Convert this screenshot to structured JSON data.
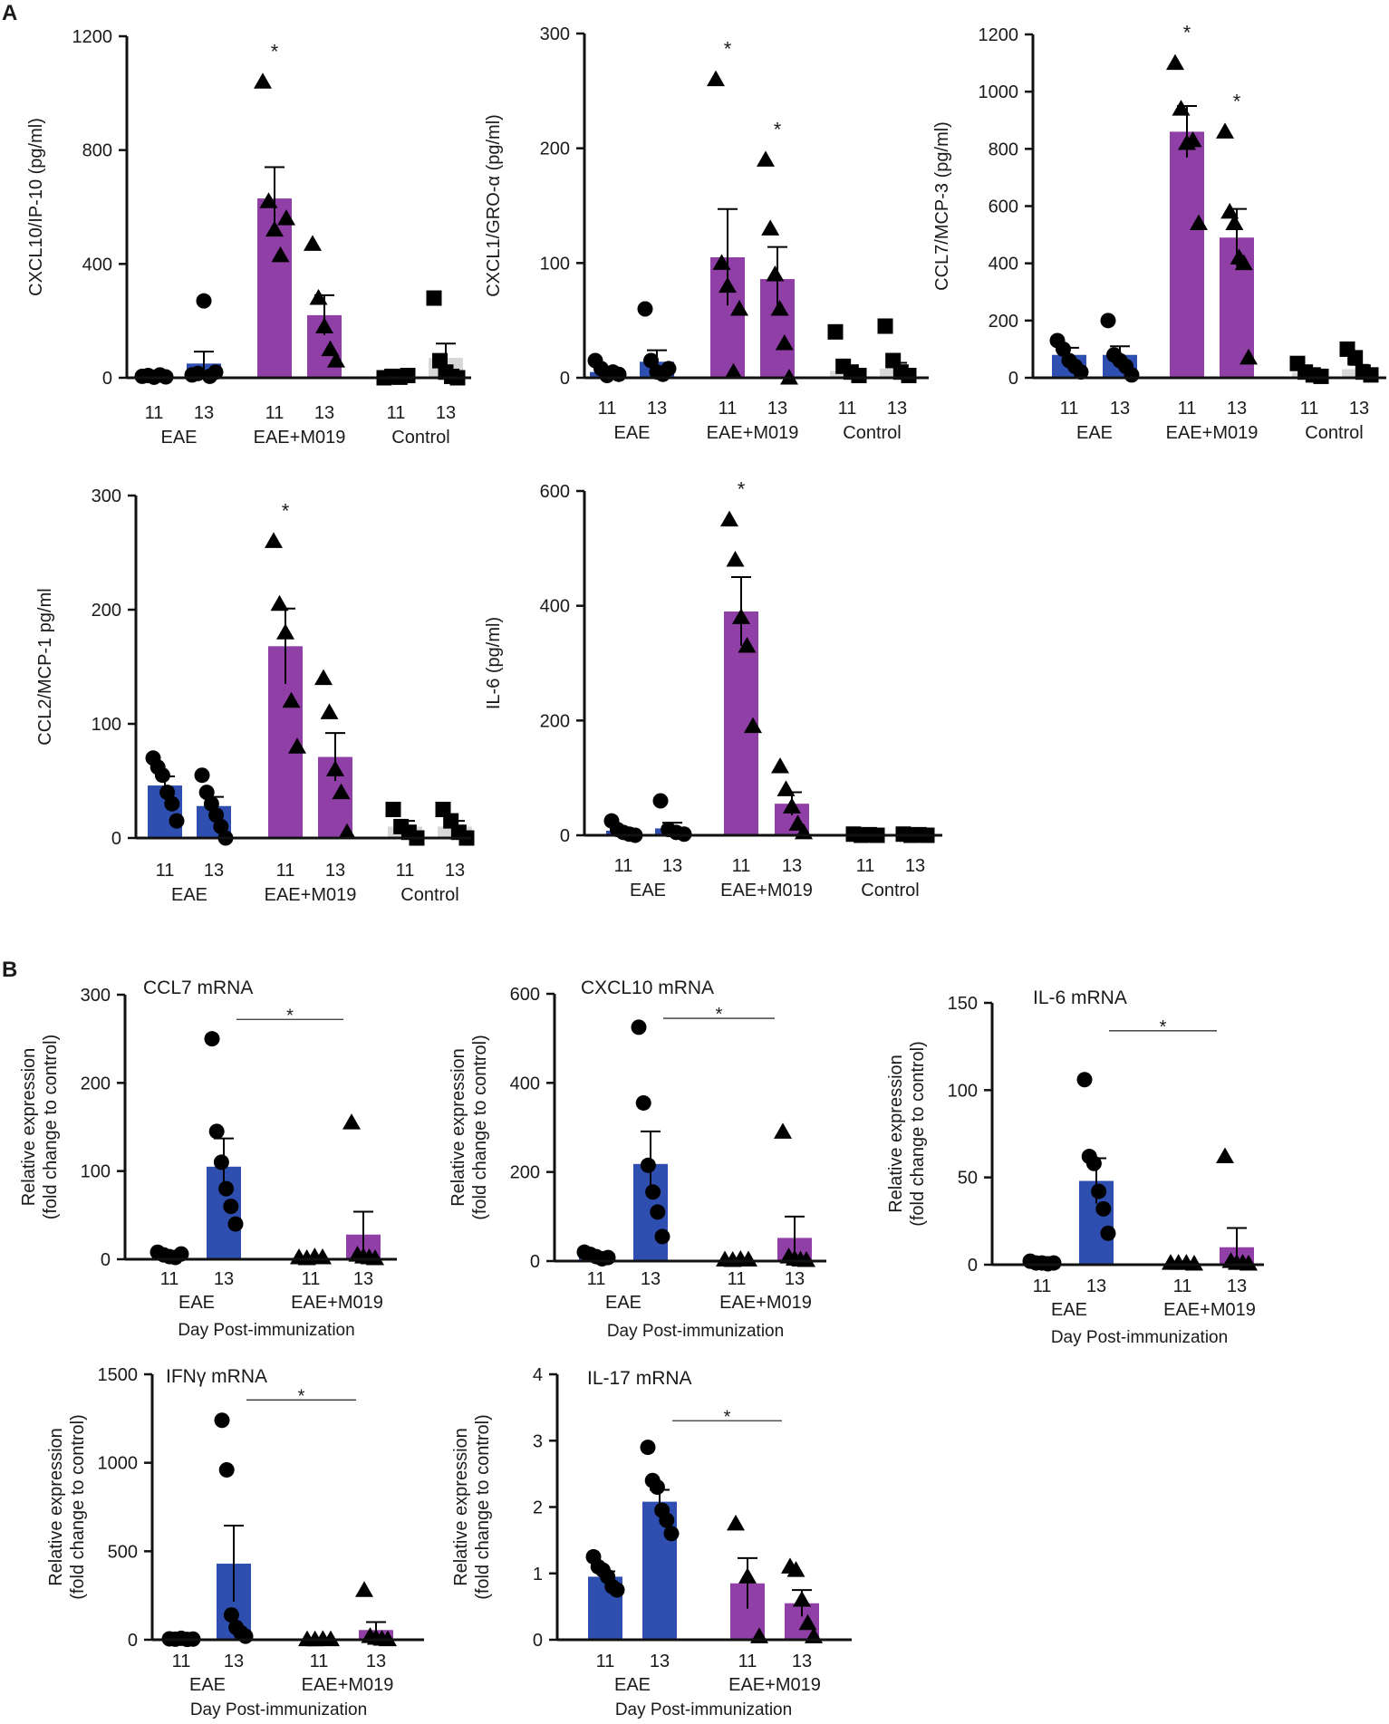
{
  "panels": [
    {
      "label": "A"
    },
    {
      "label": "B"
    }
  ],
  "colors": {
    "eae": "#2e4fb0",
    "m019": "#8f3fa6",
    "control": "#d8d8d8",
    "axis": "#111111"
  },
  "chart_data": [
    {
      "type": "bar",
      "panel": "A",
      "title": "",
      "ylabel": "CXCL10/IP-10  (pg/ml)",
      "xlabel": "",
      "ylim": [
        0,
        1200
      ],
      "yticks": [
        0,
        400,
        800,
        1200
      ],
      "day_labels": [
        "11",
        "13",
        "11",
        "13",
        "11",
        "13"
      ],
      "groups": [
        "EAE",
        "EAE+M019",
        "Control"
      ],
      "bars": [
        {
          "group": "EAE",
          "day": "11",
          "value": 5,
          "sem": 4,
          "points": [
            5,
            8,
            2,
            10,
            3
          ],
          "marker": "circle"
        },
        {
          "group": "EAE",
          "day": "13",
          "value": 50,
          "sem": 42,
          "points": [
            10,
            15,
            270,
            5,
            20
          ],
          "marker": "circle"
        },
        {
          "group": "EAE+M019",
          "day": "11",
          "value": 630,
          "sem": 110,
          "points": [
            1040,
            620,
            520,
            430,
            560
          ],
          "marker": "triangle"
        },
        {
          "group": "EAE+M019",
          "day": "13",
          "value": 220,
          "sem": 70,
          "points": [
            470,
            280,
            180,
            100,
            60
          ],
          "marker": "triangle"
        },
        {
          "group": "Control",
          "day": "11",
          "value": 5,
          "sem": 2,
          "points": [
            0,
            5,
            2,
            8
          ],
          "marker": "square"
        },
        {
          "group": "Control",
          "day": "13",
          "value": 70,
          "sem": 50,
          "points": [
            280,
            60,
            20,
            5,
            0
          ],
          "marker": "square"
        }
      ],
      "significance": [
        {
          "bar": 2,
          "label": "*"
        }
      ]
    },
    {
      "type": "bar",
      "panel": "A",
      "title": "",
      "ylabel": "CXCL1/GRO-α (pg/ml)",
      "xlabel": "",
      "ylim": [
        0,
        300
      ],
      "yticks": [
        0,
        100,
        200,
        300
      ],
      "day_labels": [
        "11",
        "13",
        "11",
        "13",
        "11",
        "13"
      ],
      "groups": [
        "EAE",
        "EAE+M019",
        "Control"
      ],
      "bars": [
        {
          "group": "EAE",
          "day": "11",
          "value": 5,
          "sem": 3,
          "points": [
            15,
            8,
            2,
            5,
            3
          ],
          "marker": "circle"
        },
        {
          "group": "EAE",
          "day": "13",
          "value": 14,
          "sem": 10,
          "points": [
            60,
            15,
            5,
            3,
            8
          ],
          "marker": "circle"
        },
        {
          "group": "EAE+M019",
          "day": "11",
          "value": 105,
          "sem": 42,
          "points": [
            260,
            100,
            80,
            5,
            60
          ],
          "marker": "triangle"
        },
        {
          "group": "EAE+M019",
          "day": "13",
          "value": 86,
          "sem": 28,
          "points": [
            190,
            130,
            90,
            60,
            30,
            0
          ],
          "marker": "triangle"
        },
        {
          "group": "Control",
          "day": "11",
          "value": 6,
          "sem": 3,
          "points": [
            40,
            10,
            5,
            2
          ],
          "marker": "square"
        },
        {
          "group": "Control",
          "day": "13",
          "value": 8,
          "sem": 5,
          "points": [
            45,
            15,
            5,
            2
          ],
          "marker": "square"
        }
      ],
      "significance": [
        {
          "bar": 2,
          "label": "*"
        },
        {
          "bar": 3,
          "label": "*"
        }
      ]
    },
    {
      "type": "bar",
      "panel": "A",
      "title": "",
      "ylabel": "CCL7/MCP-3 (pg/ml)",
      "xlabel": "",
      "ylim": [
        0,
        1200
      ],
      "yticks": [
        0,
        200,
        400,
        600,
        800,
        1000,
        1200
      ],
      "day_labels": [
        "11",
        "13",
        "11",
        "13",
        "11",
        "13"
      ],
      "groups": [
        "EAE",
        "EAE+M019",
        "Control"
      ],
      "bars": [
        {
          "group": "EAE",
          "day": "11",
          "value": 80,
          "sem": 25,
          "points": [
            130,
            100,
            60,
            40,
            20
          ],
          "marker": "circle"
        },
        {
          "group": "EAE",
          "day": "13",
          "value": 80,
          "sem": 30,
          "points": [
            200,
            80,
            60,
            40,
            10
          ],
          "marker": "circle"
        },
        {
          "group": "EAE+M019",
          "day": "11",
          "value": 860,
          "sem": 90,
          "points": [
            1100,
            940,
            820,
            830,
            540
          ],
          "marker": "triangle"
        },
        {
          "group": "EAE+M019",
          "day": "13",
          "value": 490,
          "sem": 100,
          "points": [
            860,
            580,
            540,
            420,
            400,
            70
          ],
          "marker": "triangle"
        },
        {
          "group": "Control",
          "day": "11",
          "value": 20,
          "sem": 8,
          "points": [
            50,
            20,
            10,
            5
          ],
          "marker": "square"
        },
        {
          "group": "Control",
          "day": "13",
          "value": 30,
          "sem": 15,
          "points": [
            100,
            70,
            20,
            10
          ],
          "marker": "square"
        }
      ],
      "significance": [
        {
          "bar": 2,
          "label": "*"
        },
        {
          "bar": 3,
          "label": "*"
        }
      ]
    },
    {
      "type": "bar",
      "panel": "A",
      "title": "",
      "ylabel": "CCL2/MCP-1  pg/ml",
      "xlabel": "",
      "ylim": [
        0,
        300
      ],
      "yticks": [
        0,
        100,
        200,
        300
      ],
      "day_labels": [
        "11",
        "13",
        "11",
        "13",
        "11",
        "13"
      ],
      "groups": [
        "EAE",
        "EAE+M019",
        "Control"
      ],
      "bars": [
        {
          "group": "EAE",
          "day": "11",
          "value": 46,
          "sem": 8,
          "points": [
            70,
            62,
            55,
            40,
            30,
            15
          ],
          "marker": "circle"
        },
        {
          "group": "EAE",
          "day": "13",
          "value": 28,
          "sem": 8,
          "points": [
            55,
            40,
            30,
            20,
            10,
            0
          ],
          "marker": "circle"
        },
        {
          "group": "EAE+M019",
          "day": "11",
          "value": 168,
          "sem": 33,
          "points": [
            260,
            205,
            180,
            120,
            80
          ],
          "marker": "triangle"
        },
        {
          "group": "EAE+M019",
          "day": "13",
          "value": 71,
          "sem": 21,
          "points": [
            140,
            110,
            60,
            40,
            5
          ],
          "marker": "triangle"
        },
        {
          "group": "Control",
          "day": "11",
          "value": 10,
          "sem": 5,
          "points": [
            25,
            10,
            5,
            0
          ],
          "marker": "square"
        },
        {
          "group": "Control",
          "day": "13",
          "value": 10,
          "sem": 5,
          "points": [
            25,
            15,
            5,
            0
          ],
          "marker": "square"
        }
      ],
      "significance": [
        {
          "bar": 2,
          "label": "*"
        }
      ]
    },
    {
      "type": "bar",
      "panel": "A",
      "title": "",
      "ylabel": "IL-6 (pg/ml)",
      "xlabel": "",
      "ylim": [
        0,
        600
      ],
      "yticks": [
        0,
        200,
        400,
        600
      ],
      "day_labels": [
        "11",
        "13",
        "11",
        "13",
        "11",
        "13"
      ],
      "groups": [
        "EAE",
        "EAE+M019",
        "Control"
      ],
      "bars": [
        {
          "group": "EAE",
          "day": "11",
          "value": 8,
          "sem": 4,
          "points": [
            25,
            10,
            5,
            2,
            0
          ],
          "marker": "circle"
        },
        {
          "group": "EAE",
          "day": "13",
          "value": 12,
          "sem": 10,
          "points": [
            60,
            10,
            5,
            2
          ],
          "marker": "circle"
        },
        {
          "group": "EAE+M019",
          "day": "11",
          "value": 390,
          "sem": 60,
          "points": [
            550,
            480,
            380,
            330,
            190
          ],
          "marker": "triangle"
        },
        {
          "group": "EAE+M019",
          "day": "13",
          "value": 55,
          "sem": 20,
          "points": [
            120,
            80,
            50,
            20,
            5
          ],
          "marker": "triangle"
        },
        {
          "group": "Control",
          "day": "11",
          "value": 2,
          "sem": 1,
          "points": [
            2,
            0,
            1,
            0
          ],
          "marker": "square"
        },
        {
          "group": "Control",
          "day": "13",
          "value": 2,
          "sem": 1,
          "points": [
            2,
            0,
            1,
            0
          ],
          "marker": "square"
        }
      ],
      "significance": [
        {
          "bar": 2,
          "label": "*"
        }
      ]
    },
    {
      "type": "bar",
      "panel": "B",
      "title": "CCL7 mRNA",
      "ylabel": [
        "Relative expression",
        "(fold change to control)"
      ],
      "xlabel": "Day Post-immunization",
      "ylim": [
        0,
        300
      ],
      "yticks": [
        0,
        100,
        200,
        300
      ],
      "day_labels": [
        "11",
        "13",
        "11",
        "13"
      ],
      "groups": [
        "EAE",
        "EAE+M019"
      ],
      "bars": [
        {
          "group": "EAE",
          "day": "11",
          "value": 5,
          "sem": 2,
          "points": [
            8,
            5,
            3,
            2,
            6
          ],
          "marker": "circle"
        },
        {
          "group": "EAE",
          "day": "13",
          "value": 105,
          "sem": 32,
          "points": [
            250,
            145,
            110,
            80,
            60,
            40
          ],
          "marker": "circle"
        },
        {
          "group": "EAE+M019",
          "day": "11",
          "value": 2,
          "sem": 1,
          "points": [
            2,
            1,
            3,
            2
          ],
          "marker": "triangle"
        },
        {
          "group": "EAE+M019",
          "day": "13",
          "value": 28,
          "sem": 26,
          "points": [
            155,
            5,
            3,
            2,
            1
          ],
          "marker": "triangle"
        }
      ],
      "comparison": {
        "from": 1,
        "to": 3,
        "label": "*",
        "value": 272
      }
    },
    {
      "type": "bar",
      "panel": "B",
      "title": "CXCL10 mRNA",
      "ylabel": [
        "Relative expression",
        "(fold change to control)"
      ],
      "xlabel": "Day Post-immunization",
      "ylim": [
        0,
        600
      ],
      "yticks": [
        0,
        200,
        400,
        600
      ],
      "day_labels": [
        "11",
        "13",
        "11",
        "13"
      ],
      "groups": [
        "EAE",
        "EAE+M019"
      ],
      "bars": [
        {
          "group": "EAE",
          "day": "11",
          "value": 10,
          "sem": 4,
          "points": [
            20,
            15,
            10,
            5,
            8
          ],
          "marker": "circle"
        },
        {
          "group": "EAE",
          "day": "13",
          "value": 218,
          "sem": 73,
          "points": [
            525,
            355,
            215,
            155,
            110,
            55
          ],
          "marker": "circle"
        },
        {
          "group": "EAE+M019",
          "day": "11",
          "value": 3,
          "sem": 1,
          "points": [
            3,
            2,
            4,
            3
          ],
          "marker": "triangle"
        },
        {
          "group": "EAE+M019",
          "day": "13",
          "value": 52,
          "sem": 48,
          "points": [
            290,
            10,
            5,
            3,
            2
          ],
          "marker": "triangle"
        }
      ],
      "comparison": {
        "from": 1,
        "to": 3,
        "label": "*",
        "value": 545
      }
    },
    {
      "type": "bar",
      "panel": "B",
      "title": "IL-6 mRNA",
      "ylabel": [
        "Relative expression",
        "(fold change to control)"
      ],
      "xlabel": "Day Post-immunization",
      "ylim": [
        0,
        150
      ],
      "yticks": [
        0,
        50,
        100,
        150
      ],
      "day_labels": [
        "11",
        "13",
        "11",
        "13"
      ],
      "groups": [
        "EAE",
        "EAE+M019"
      ],
      "bars": [
        {
          "group": "EAE",
          "day": "11",
          "value": 1,
          "sem": 0.5,
          "points": [
            2,
            1,
            1,
            0.5,
            1
          ],
          "marker": "circle"
        },
        {
          "group": "EAE",
          "day": "13",
          "value": 48,
          "sem": 13,
          "points": [
            106,
            62,
            58,
            42,
            32,
            18
          ],
          "marker": "circle"
        },
        {
          "group": "EAE+M019",
          "day": "11",
          "value": 1,
          "sem": 0.5,
          "points": [
            1,
            1,
            1,
            0.5
          ],
          "marker": "triangle"
        },
        {
          "group": "EAE+M019",
          "day": "13",
          "value": 10,
          "sem": 11,
          "points": [
            62,
            2,
            1,
            1,
            0.5
          ],
          "marker": "triangle"
        }
      ],
      "comparison": {
        "from": 1,
        "to": 3,
        "label": "*",
        "value": 134
      }
    },
    {
      "type": "bar",
      "panel": "B",
      "title": "IFNγ mRNA",
      "ylabel": [
        "Relative expression",
        "(fold change to control)"
      ],
      "xlabel": "Day Post-immunization",
      "ylim": [
        0,
        1500
      ],
      "yticks": [
        0,
        500,
        1000,
        1500
      ],
      "day_labels": [
        "11",
        "13",
        "11",
        "13"
      ],
      "groups": [
        "EAE",
        "EAE+M019"
      ],
      "bars": [
        {
          "group": "EAE",
          "day": "11",
          "value": 5,
          "sem": 2,
          "points": [
            5,
            3,
            8,
            2,
            4
          ],
          "marker": "circle"
        },
        {
          "group": "EAE",
          "day": "13",
          "value": 430,
          "sem": 215,
          "points": [
            1240,
            960,
            140,
            70,
            40,
            20
          ],
          "marker": "circle"
        },
        {
          "group": "EAE+M019",
          "day": "11",
          "value": 2,
          "sem": 1,
          "points": [
            2,
            1,
            3,
            2
          ],
          "marker": "triangle"
        },
        {
          "group": "EAE+M019",
          "day": "13",
          "value": 55,
          "sem": 45,
          "points": [
            280,
            20,
            10,
            5,
            2
          ],
          "marker": "triangle"
        }
      ],
      "comparison": {
        "from": 1,
        "to": 3,
        "label": "*",
        "value": 1355
      }
    },
    {
      "type": "bar",
      "panel": "B",
      "title": "IL-17 mRNA",
      "ylabel": [
        "Relative expression",
        "(fold change to control)"
      ],
      "xlabel": "Day Post-immunization",
      "ylim": [
        0,
        4
      ],
      "yticks": [
        0,
        1,
        2,
        3,
        4
      ],
      "day_labels": [
        "11",
        "13",
        "11",
        "13"
      ],
      "groups": [
        "EAE",
        "EAE+M019"
      ],
      "bars": [
        {
          "group": "EAE",
          "day": "11",
          "value": 0.95,
          "sem": 0.08,
          "points": [
            1.25,
            1.1,
            1.05,
            0.95,
            0.8,
            0.75
          ],
          "marker": "circle"
        },
        {
          "group": "EAE",
          "day": "13",
          "value": 2.08,
          "sem": 0.18,
          "points": [
            2.9,
            2.4,
            2.3,
            1.95,
            1.8,
            1.6
          ],
          "marker": "circle"
        },
        {
          "group": "EAE+M019",
          "day": "11",
          "value": 0.85,
          "sem": 0.38,
          "points": [
            1.75,
            0.95,
            0.05
          ],
          "marker": "triangle"
        },
        {
          "group": "EAE+M019",
          "day": "13",
          "value": 0.55,
          "sem": 0.2,
          "points": [
            1.1,
            1.05,
            0.6,
            0.25,
            0.05
          ],
          "marker": "triangle"
        }
      ],
      "comparison": {
        "from": 1,
        "to": 3,
        "label": "*",
        "value": 3.3
      }
    }
  ]
}
